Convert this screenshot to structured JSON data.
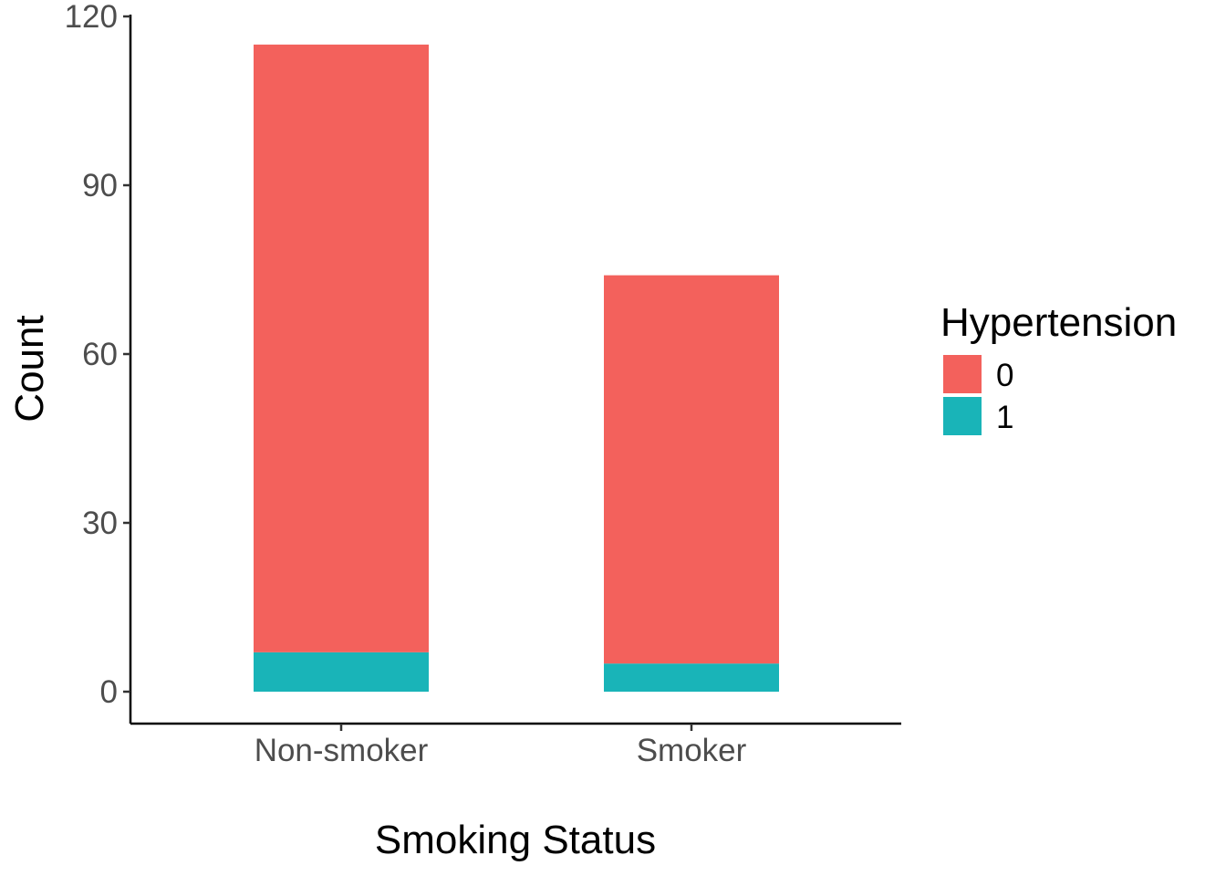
{
  "chart_data": {
    "type": "bar",
    "stacked": true,
    "categories": [
      "Non-smoker",
      "Smoker"
    ],
    "series": [
      {
        "name": "0",
        "values": [
          108,
          69
        ],
        "color": "#F3615C"
      },
      {
        "name": "1",
        "values": [
          7,
          5
        ],
        "color": "#19B4B8"
      }
    ],
    "title": "",
    "xlabel": "Smoking Status",
    "ylabel": "Count",
    "ylim": [
      0,
      120
    ],
    "yticks": [
      0,
      30,
      60,
      90,
      120
    ],
    "grid": false,
    "legend": {
      "title": "Hypertension",
      "position": "right"
    }
  }
}
